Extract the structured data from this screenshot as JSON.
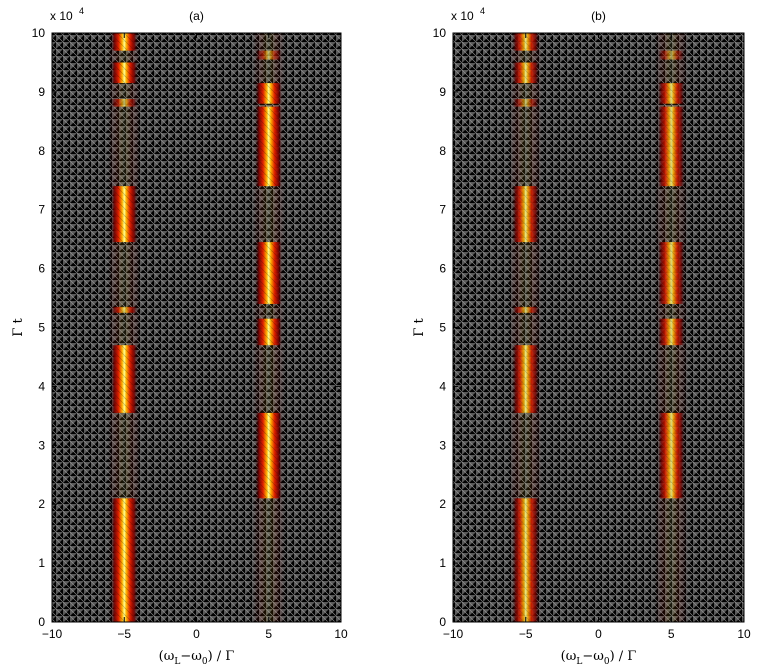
{
  "chart_data": [
    {
      "type": "heatmap",
      "title": "(a)",
      "xlabel": "(ω_L−ω_0) / Γ",
      "ylabel": "Γ t",
      "xlim": [
        -10,
        10
      ],
      "ylim": [
        0,
        100000
      ],
      "y_multiplier_label": "x 10",
      "y_multiplier_exponent": "4",
      "xticks": [
        -10,
        -5,
        0,
        5,
        10
      ],
      "yticks": [
        0,
        1,
        2,
        3,
        4,
        5,
        6,
        7,
        8,
        9,
        10
      ],
      "colormap": "hot",
      "resonance_centers": [
        -5,
        5
      ],
      "band_halfwidth": 0.45,
      "bright_intervals": [
        {
          "x_center": -5,
          "y_start": 0,
          "y_end": 21000,
          "intensity": 1.0
        },
        {
          "x_center": 5,
          "y_start": 21000,
          "y_end": 35500,
          "intensity": 1.0
        },
        {
          "x_center": -5,
          "y_start": 35500,
          "y_end": 47000,
          "intensity": 1.0
        },
        {
          "x_center": 5,
          "y_start": 47000,
          "y_end": 51500,
          "intensity": 1.0
        },
        {
          "x_center": -5,
          "y_start": 52500,
          "y_end": 53500,
          "intensity": 0.8
        },
        {
          "x_center": 5,
          "y_start": 54000,
          "y_end": 64500,
          "intensity": 1.0
        },
        {
          "x_center": -5,
          "y_start": 64500,
          "y_end": 74000,
          "intensity": 1.0
        },
        {
          "x_center": 5,
          "y_start": 74000,
          "y_end": 87500,
          "intensity": 1.0
        },
        {
          "x_center": -5,
          "y_start": 87500,
          "y_end": 88800,
          "intensity": 0.7
        },
        {
          "x_center": 5,
          "y_start": 88000,
          "y_end": 91500,
          "intensity": 1.0
        },
        {
          "x_center": -5,
          "y_start": 91500,
          "y_end": 95000,
          "intensity": 1.0
        },
        {
          "x_center": 5,
          "y_start": 95500,
          "y_end": 97000,
          "intensity": 0.6
        },
        {
          "x_center": -5,
          "y_start": 97000,
          "y_end": 100000,
          "intensity": 1.0
        }
      ]
    },
    {
      "type": "heatmap",
      "title": "(b)",
      "xlabel": "(ω_L−ω_0) / Γ",
      "ylabel": "Γ t",
      "xlim": [
        -10,
        10
      ],
      "ylim": [
        0,
        100000
      ],
      "y_multiplier_label": "x 10",
      "y_multiplier_exponent": "4",
      "xticks": [
        -10,
        -5,
        0,
        5,
        10
      ],
      "yticks": [
        0,
        1,
        2,
        3,
        4,
        5,
        6,
        7,
        8,
        9,
        10
      ],
      "colormap": "hot",
      "resonance_centers": [
        -5,
        5
      ],
      "band_halfwidth": 0.45,
      "bright_intervals": [
        {
          "x_center": -5,
          "y_start": 0,
          "y_end": 21000,
          "intensity": 0.85
        },
        {
          "x_center": 5,
          "y_start": 21000,
          "y_end": 35500,
          "intensity": 0.85
        },
        {
          "x_center": -5,
          "y_start": 35500,
          "y_end": 47000,
          "intensity": 0.85
        },
        {
          "x_center": 5,
          "y_start": 47000,
          "y_end": 51500,
          "intensity": 0.85
        },
        {
          "x_center": -5,
          "y_start": 52500,
          "y_end": 53500,
          "intensity": 0.7
        },
        {
          "x_center": 5,
          "y_start": 54000,
          "y_end": 64500,
          "intensity": 0.85
        },
        {
          "x_center": -5,
          "y_start": 64500,
          "y_end": 74000,
          "intensity": 0.85
        },
        {
          "x_center": 5,
          "y_start": 74000,
          "y_end": 87500,
          "intensity": 0.85
        },
        {
          "x_center": -5,
          "y_start": 87500,
          "y_end": 88800,
          "intensity": 0.6
        },
        {
          "x_center": 5,
          "y_start": 88000,
          "y_end": 91500,
          "intensity": 0.85
        },
        {
          "x_center": -5,
          "y_start": 91500,
          "y_end": 95000,
          "intensity": 0.85
        },
        {
          "x_center": 5,
          "y_start": 95500,
          "y_end": 97000,
          "intensity": 0.55
        },
        {
          "x_center": -5,
          "y_start": 97000,
          "y_end": 100000,
          "intensity": 0.85
        }
      ]
    }
  ]
}
